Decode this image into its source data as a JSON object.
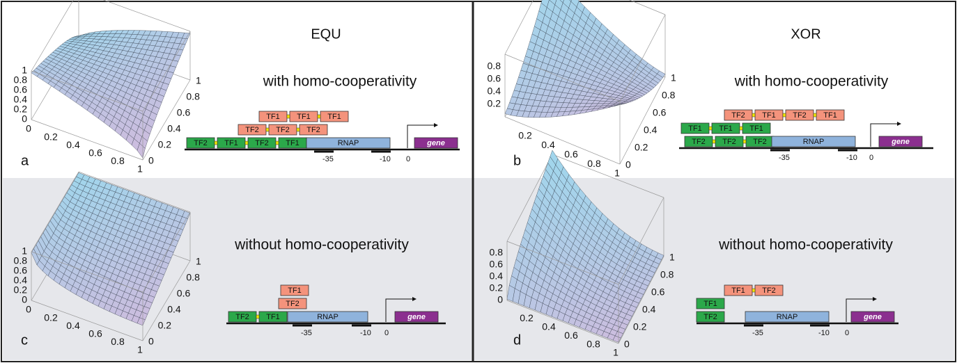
{
  "panels": [
    {
      "letter": "a",
      "title": "EQU",
      "subtitle": "with homo-cooperativity",
      "z_ticks": [
        "0",
        "0.2",
        "0.4",
        "0.6",
        "0.8",
        "1"
      ],
      "x_ticks": [
        "0",
        "0.2",
        "0.4",
        "0.6",
        "0.8",
        "1"
      ],
      "y_ticks": [
        "0",
        "0.2",
        "0.4",
        "0.6",
        "0.8",
        "1"
      ],
      "tf_rows": [
        {
          "color": "#f4937c",
          "labels": [
            "TF1",
            "TF1",
            "TF1"
          ]
        },
        {
          "color": "#f4937c",
          "labels": [
            "TF2",
            "TF2",
            "TF2"
          ]
        },
        {
          "color": "#2ba84a",
          "labels": [
            "TF2",
            "TF1",
            "TF2",
            "TF1"
          ]
        }
      ],
      "rnap": "RNAP",
      "gene": "gene",
      "positions": [
        "-35",
        "-10",
        "0"
      ]
    },
    {
      "letter": "b",
      "title": "XOR",
      "subtitle": "with homo-cooperativity",
      "z_ticks": [
        "0.2",
        "0.4",
        "0.6",
        "0.8"
      ],
      "x_ticks": [
        "0.2",
        "0.4",
        "0.6",
        "0.8",
        "1"
      ],
      "y_ticks": [
        "0",
        "0.2",
        "0.4",
        "0.6",
        "0.8",
        "1"
      ],
      "tf_rows": [
        {
          "color": "#f4937c",
          "labels": [
            "TF2",
            "TF1",
            "TF2",
            "TF1"
          ]
        },
        {
          "color": "#2ba84a",
          "labels": [
            "TF1",
            "TF1",
            "TF1"
          ]
        },
        {
          "color": "#2ba84a",
          "labels": [
            "TF2",
            "TF2",
            "TF2"
          ]
        }
      ],
      "rnap": "RNAP",
      "gene": "gene",
      "positions": [
        "-35",
        "-10",
        "0"
      ]
    },
    {
      "letter": "c",
      "subtitle": "without homo-cooperativity",
      "z_ticks": [
        "0",
        "0.2",
        "0.4",
        "0.6",
        "0.8",
        "1"
      ],
      "x_ticks": [
        "0",
        "0.2",
        "0.4",
        "0.6",
        "0.8",
        "1"
      ],
      "y_ticks": [
        "0",
        "0.2",
        "0.4",
        "0.6",
        "0.8",
        "1"
      ],
      "tf_rows": [
        {
          "color": "#f4937c",
          "labels": [
            "TF1"
          ]
        },
        {
          "color": "#f4937c",
          "labels": [
            "TF2"
          ]
        },
        {
          "color": "#2ba84a",
          "labels": [
            "TF2",
            "TF1"
          ]
        }
      ],
      "rnap": "RNAP",
      "gene": "gene",
      "positions": [
        "-35",
        "-10",
        "0"
      ]
    },
    {
      "letter": "d",
      "subtitle": "without homo-cooperativity",
      "z_ticks": [
        "0",
        "0.2",
        "0.4",
        "0.6",
        "0.8"
      ],
      "x_ticks": [
        "0.2",
        "0.4",
        "0.6",
        "0.8",
        "1"
      ],
      "y_ticks": [
        "0",
        "0.2",
        "0.4",
        "0.6",
        "0.8",
        "1"
      ],
      "tf_rows": [
        {
          "color": "#f4937c",
          "labels": [
            "TF1",
            "TF2"
          ]
        },
        {
          "color": "#2ba84a",
          "labels": [
            "TF1"
          ]
        },
        {
          "color": "#2ba84a",
          "labels": [
            "TF2"
          ]
        }
      ],
      "rnap": "RNAP",
      "gene": "gene",
      "positions": [
        "-35",
        "-10",
        "0"
      ]
    }
  ]
}
